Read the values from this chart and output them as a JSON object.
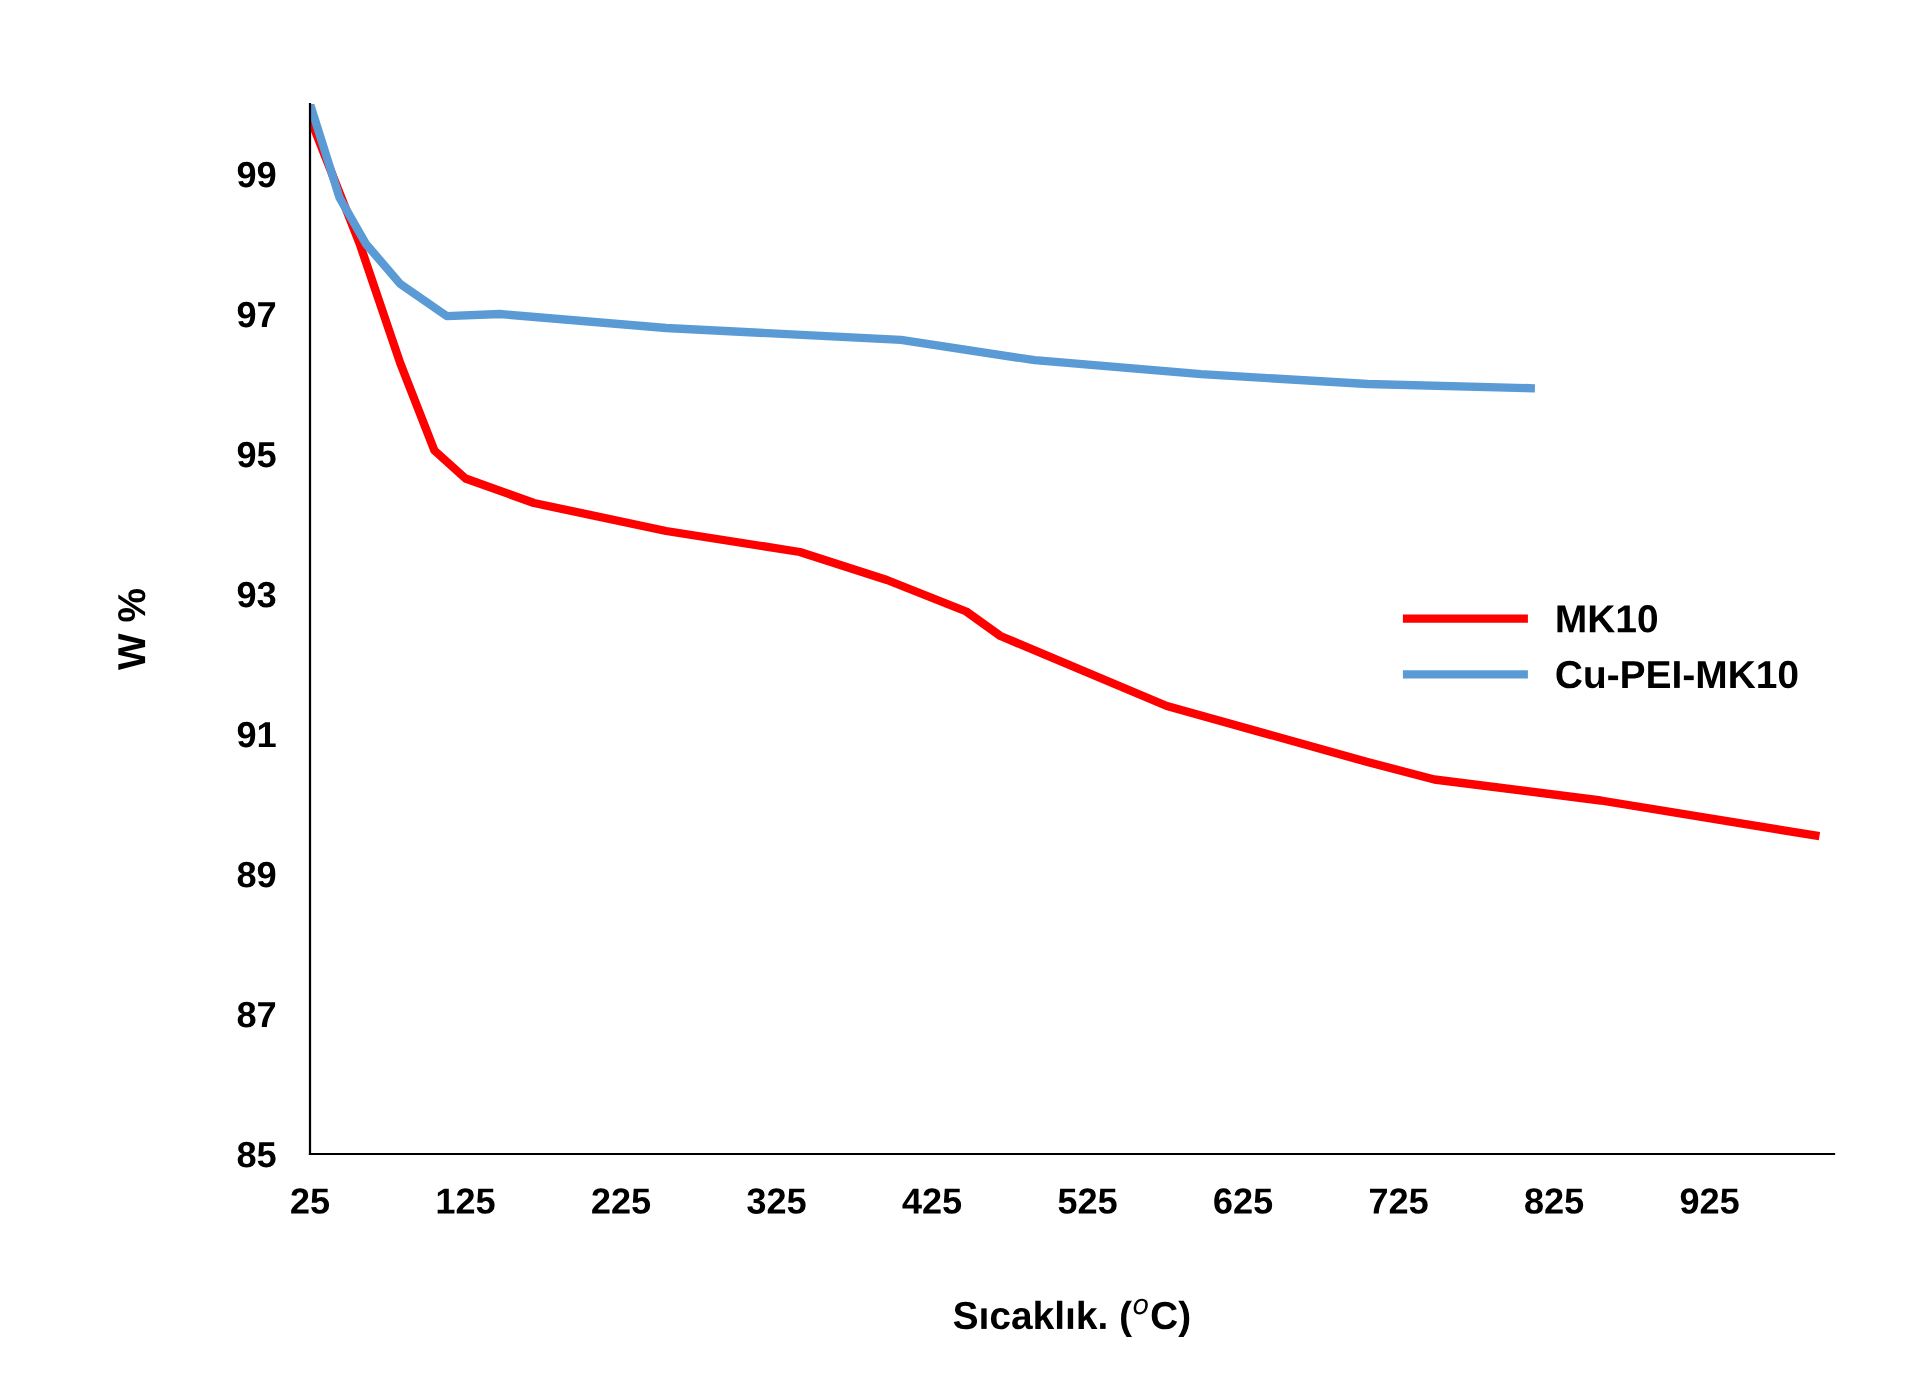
{
  "chart_data": {
    "type": "line",
    "xlabel": "Sıcaklık. ($^{o}$C)",
    "ylabel": "W %",
    "xlim": [
      25,
      1005
    ],
    "xticks": [
      25,
      125,
      225,
      325,
      425,
      525,
      625,
      725,
      825,
      925
    ],
    "ylim": [
      85,
      100
    ],
    "yticks": [
      85,
      87,
      89,
      91,
      93,
      95,
      97,
      99
    ],
    "grid": false,
    "legend": "right",
    "marker": "none",
    "line_style": "solid",
    "series": [
      {
        "name": "MK10",
        "color": "#ff0000",
        "x": [
          25,
          57,
          83,
          105,
          125,
          169,
          254,
          340,
          396,
          447,
          469,
          576,
          705,
          748,
          855,
          993
        ],
        "values": [
          99.8,
          98.0,
          96.3,
          95.05,
          94.65,
          94.3,
          93.9,
          93.6,
          93.2,
          92.75,
          92.4,
          91.4,
          90.6,
          90.35,
          90.05,
          89.55
        ]
      },
      {
        "name": "Cu-PEI-MK10",
        "color": "#5b9bd5",
        "x": [
          25,
          44,
          61,
          83,
          113,
          147,
          254,
          405,
          491,
          598,
          705,
          810
        ],
        "values": [
          100.0,
          98.66,
          98.0,
          97.43,
          96.97,
          97.0,
          96.8,
          96.63,
          96.34,
          96.14,
          96.0,
          95.94
        ]
      }
    ]
  }
}
